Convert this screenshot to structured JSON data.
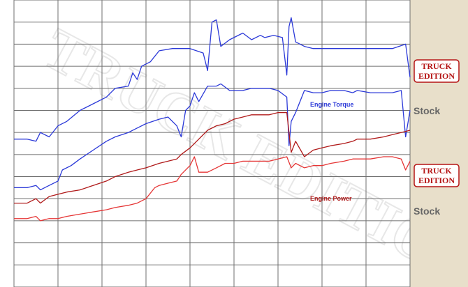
{
  "chart_data": {
    "type": "line",
    "title": "",
    "xlabel": "",
    "ylabel": "",
    "grid": true,
    "series": [
      {
        "name": "Engine Torque",
        "variant": "TRUCK EDITION",
        "color": "#2b39d8",
        "points": [
          [
            0,
            67
          ],
          [
            3,
            67
          ],
          [
            5,
            66
          ],
          [
            6,
            70
          ],
          [
            8,
            68
          ],
          [
            10,
            73
          ],
          [
            12,
            75
          ],
          [
            15,
            80
          ],
          [
            18,
            83
          ],
          [
            21,
            86
          ],
          [
            23,
            90
          ],
          [
            26,
            91
          ],
          [
            27,
            97
          ],
          [
            28,
            94
          ],
          [
            29,
            100
          ],
          [
            31,
            102
          ],
          [
            33,
            107
          ],
          [
            36,
            108
          ],
          [
            40,
            108
          ],
          [
            43,
            106
          ],
          [
            44,
            98
          ],
          [
            45,
            120
          ],
          [
            46,
            121
          ],
          [
            47,
            109
          ],
          [
            49,
            112
          ],
          [
            52,
            115
          ],
          [
            54,
            112
          ],
          [
            56,
            114
          ],
          [
            57,
            113
          ],
          [
            59,
            114
          ],
          [
            61,
            113
          ],
          [
            62,
            96
          ],
          [
            62.5,
            118
          ],
          [
            63,
            122
          ],
          [
            64,
            111
          ],
          [
            66,
            109
          ],
          [
            68,
            108
          ],
          [
            70,
            108
          ],
          [
            73,
            108
          ],
          [
            75,
            108
          ],
          [
            77,
            108
          ],
          [
            78,
            108
          ],
          [
            81,
            108
          ],
          [
            84,
            108
          ],
          [
            86,
            108
          ],
          [
            89,
            110
          ],
          [
            90,
            95
          ]
        ]
      },
      {
        "name": "Engine Torque",
        "variant": "Stock",
        "color": "#2b39d8",
        "points": [
          [
            0,
            45
          ],
          [
            3,
            45
          ],
          [
            5,
            46
          ],
          [
            6,
            44
          ],
          [
            8,
            46
          ],
          [
            10,
            48
          ],
          [
            11,
            53
          ],
          [
            13,
            55
          ],
          [
            15,
            58
          ],
          [
            18,
            62
          ],
          [
            21,
            66
          ],
          [
            23,
            68
          ],
          [
            26,
            70
          ],
          [
            28,
            72
          ],
          [
            30,
            74
          ],
          [
            33,
            76
          ],
          [
            35,
            77
          ],
          [
            37,
            73
          ],
          [
            38,
            68
          ],
          [
            39,
            80
          ],
          [
            40,
            82
          ],
          [
            41,
            88
          ],
          [
            42,
            84
          ],
          [
            44,
            91
          ],
          [
            46,
            91
          ],
          [
            47,
            92
          ],
          [
            49,
            89
          ],
          [
            52,
            89
          ],
          [
            54,
            90
          ],
          [
            56,
            90
          ],
          [
            58,
            90
          ],
          [
            60,
            89
          ],
          [
            62,
            86
          ],
          [
            62.5,
            64
          ],
          [
            63,
            75
          ],
          [
            64,
            79
          ],
          [
            66,
            89
          ],
          [
            68,
            88
          ],
          [
            70,
            88
          ],
          [
            72,
            89
          ],
          [
            75,
            89
          ],
          [
            77,
            88
          ],
          [
            78,
            89
          ],
          [
            81,
            88
          ],
          [
            84,
            88
          ],
          [
            86,
            88
          ],
          [
            88,
            89
          ],
          [
            89,
            68
          ],
          [
            90,
            80
          ]
        ]
      },
      {
        "name": "Engine Power",
        "variant": "TRUCK EDITION",
        "color": "#b01a1a",
        "points": [
          [
            0,
            38
          ],
          [
            3,
            38
          ],
          [
            5,
            40
          ],
          [
            6,
            38
          ],
          [
            8,
            41
          ],
          [
            10,
            42
          ],
          [
            12,
            43
          ],
          [
            15,
            44
          ],
          [
            18,
            46
          ],
          [
            21,
            48
          ],
          [
            23,
            50
          ],
          [
            26,
            52
          ],
          [
            28,
            53
          ],
          [
            30,
            54
          ],
          [
            33,
            56
          ],
          [
            35,
            57
          ],
          [
            37,
            58
          ],
          [
            38,
            60
          ],
          [
            40,
            63
          ],
          [
            42,
            67
          ],
          [
            44,
            71
          ],
          [
            46,
            73
          ],
          [
            48,
            74
          ],
          [
            50,
            76
          ],
          [
            52,
            77
          ],
          [
            54,
            78
          ],
          [
            56,
            78
          ],
          [
            58,
            78
          ],
          [
            60,
            79
          ],
          [
            62,
            79
          ],
          [
            63,
            61
          ],
          [
            64,
            66
          ],
          [
            66,
            59
          ],
          [
            68,
            62
          ],
          [
            70,
            63
          ],
          [
            72,
            64
          ],
          [
            75,
            65
          ],
          [
            77,
            66
          ],
          [
            78,
            67
          ],
          [
            81,
            67
          ],
          [
            84,
            68
          ],
          [
            86,
            69
          ],
          [
            88,
            70
          ],
          [
            90,
            71
          ]
        ]
      },
      {
        "name": "Engine Power",
        "variant": "Stock",
        "color": "#e53535",
        "points": [
          [
            0,
            31
          ],
          [
            3,
            31
          ],
          [
            5,
            32
          ],
          [
            6,
            30
          ],
          [
            8,
            31
          ],
          [
            10,
            31
          ],
          [
            12,
            32
          ],
          [
            15,
            33
          ],
          [
            18,
            34
          ],
          [
            21,
            35
          ],
          [
            23,
            36
          ],
          [
            26,
            37
          ],
          [
            28,
            38
          ],
          [
            30,
            40
          ],
          [
            32,
            45
          ],
          [
            33,
            46
          ],
          [
            35,
            47
          ],
          [
            37,
            48
          ],
          [
            38,
            51
          ],
          [
            40,
            55
          ],
          [
            41,
            59
          ],
          [
            42,
            52
          ],
          [
            44,
            52
          ],
          [
            46,
            54
          ],
          [
            48,
            56
          ],
          [
            50,
            56
          ],
          [
            52,
            57
          ],
          [
            54,
            57
          ],
          [
            56,
            57
          ],
          [
            58,
            57
          ],
          [
            60,
            58
          ],
          [
            62,
            59
          ],
          [
            63,
            54
          ],
          [
            64,
            56
          ],
          [
            66,
            54
          ],
          [
            68,
            55
          ],
          [
            70,
            55
          ],
          [
            72,
            56
          ],
          [
            75,
            57
          ],
          [
            77,
            58
          ],
          [
            78,
            58
          ],
          [
            81,
            58
          ],
          [
            84,
            59
          ],
          [
            86,
            59
          ],
          [
            88,
            58
          ],
          [
            89,
            53
          ],
          [
            90,
            57
          ]
        ]
      }
    ]
  },
  "labels": {
    "engine_torque": "Engine Torque",
    "engine_power": "Engine Power",
    "stock_top": "Stock",
    "stock_bottom": "Stock",
    "badge_line1": "TRUCK",
    "badge_line2": "EDITION"
  },
  "watermark": "TRUCK EDITION",
  "colors": {
    "plot_background": "#ffffff",
    "grid": "#6f6f6f",
    "side_panel": "#e8dfca",
    "badge_red": "#b51414",
    "stock_text": "#666666"
  }
}
